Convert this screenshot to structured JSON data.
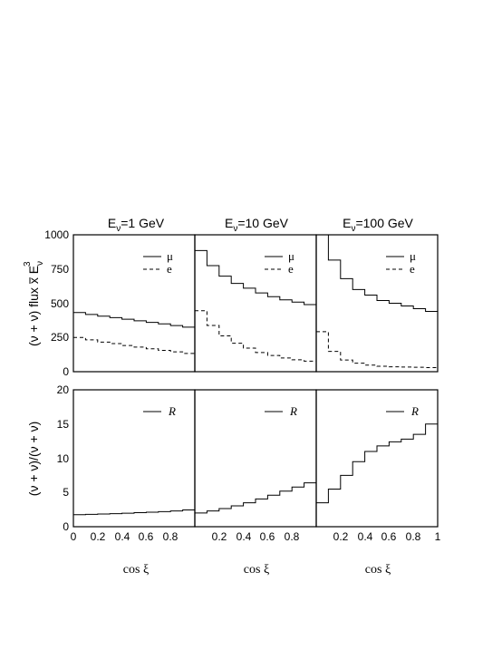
{
  "panel_titles": [
    {
      "base": "E",
      "sub": "ν",
      "rest": "=1 GeV"
    },
    {
      "base": "E",
      "sub": "ν",
      "rest": "=10 GeV"
    },
    {
      "base": "E",
      "sub": "ν",
      "rest": "=100 GeV"
    }
  ],
  "xlabel": "cos ξ",
  "ylabel_top": "(ν + ν) flux x E",
  "ylabel_top_sup": "3",
  "ylabel_top_sub": "ν",
  "ylabel_bottom": "(ν + ν)/(ν + ν)",
  "legend_top": [
    "μ",
    "e"
  ],
  "legend_bottom": [
    "R"
  ],
  "x_ticks": [
    "0",
    "0.2",
    "0.4",
    "0.6",
    "0.8",
    "1"
  ],
  "x_ticks_cont": [
    "0.2",
    "0.4",
    "0.6",
    "0.8",
    "1"
  ],
  "y_ticks_top": [
    "0",
    "250",
    "500",
    "750",
    "1000"
  ],
  "y_ticks_bottom": [
    "0",
    "5",
    "10",
    "15",
    "20"
  ],
  "chart_data": [
    {
      "type": "line",
      "title": "Eν=1 GeV",
      "xlim": [
        0,
        1
      ],
      "ylim": [
        0,
        1000
      ],
      "grid": false,
      "legend": "top-right",
      "x": [
        0,
        0.1,
        0.2,
        0.3,
        0.4,
        0.5,
        0.6,
        0.7,
        0.8,
        0.9,
        1.0
      ],
      "series": [
        {
          "name": "μ",
          "style": "solid",
          "values": [
            432,
            418,
            406,
            395,
            383,
            372,
            360,
            349,
            337,
            325,
            322
          ]
        },
        {
          "name": "e",
          "style": "dashed",
          "values": [
            250,
            233,
            216,
            205,
            191,
            180,
            167,
            156,
            145,
            133,
            128
          ]
        }
      ]
    },
    {
      "type": "line",
      "title": "Eν=10 GeV",
      "xlim": [
        0,
        1
      ],
      "ylim": [
        0,
        1000
      ],
      "grid": false,
      "legend": "top-right",
      "x": [
        0,
        0.1,
        0.2,
        0.3,
        0.4,
        0.5,
        0.6,
        0.7,
        0.8,
        0.9,
        1.0
      ],
      "series": [
        {
          "name": "μ",
          "style": "solid",
          "values": [
            885,
            775,
            698,
            645,
            610,
            575,
            548,
            525,
            508,
            490,
            488
          ]
        },
        {
          "name": "e",
          "style": "dashed",
          "values": [
            445,
            338,
            262,
            208,
            172,
            140,
            118,
            100,
            87,
            77,
            72
          ]
        }
      ]
    },
    {
      "type": "line",
      "title": "Eν=100 GeV",
      "xlim": [
        0,
        1
      ],
      "ylim": [
        0,
        1000
      ],
      "grid": false,
      "legend": "top-right",
      "x": [
        0,
        0.1,
        0.2,
        0.3,
        0.4,
        0.5,
        0.6,
        0.7,
        0.8,
        0.9,
        1.0
      ],
      "series": [
        {
          "name": "μ",
          "style": "solid",
          "values": [
            1000,
            815,
            680,
            600,
            560,
            520,
            500,
            480,
            460,
            440,
            432
          ]
        },
        {
          "name": "e",
          "style": "dashed",
          "values": [
            292,
            148,
            85,
            62,
            48,
            40,
            36,
            34,
            32,
            30,
            29
          ]
        }
      ]
    },
    {
      "type": "line",
      "xlim": [
        0,
        1
      ],
      "ylim": [
        0,
        20
      ],
      "grid": false,
      "legend": "top-right",
      "x": [
        0,
        0.1,
        0.2,
        0.3,
        0.4,
        0.5,
        0.6,
        0.7,
        0.8,
        0.9,
        1.0
      ],
      "series": [
        {
          "name": "R",
          "style": "solid",
          "values": [
            1.75,
            1.8,
            1.85,
            1.9,
            1.97,
            2.05,
            2.12,
            2.2,
            2.3,
            2.45,
            2.5
          ]
        }
      ]
    },
    {
      "type": "line",
      "xlim": [
        0,
        1
      ],
      "ylim": [
        0,
        20
      ],
      "grid": false,
      "legend": "top-right",
      "x": [
        0,
        0.1,
        0.2,
        0.3,
        0.4,
        0.5,
        0.6,
        0.7,
        0.8,
        0.9,
        1.0
      ],
      "series": [
        {
          "name": "R",
          "style": "solid",
          "values": [
            2.0,
            2.3,
            2.65,
            3.05,
            3.5,
            4.05,
            4.6,
            5.2,
            5.8,
            6.4,
            6.5
          ]
        }
      ]
    },
    {
      "type": "line",
      "xlim": [
        0,
        1
      ],
      "ylim": [
        0,
        20
      ],
      "grid": false,
      "legend": "top-right",
      "x": [
        0,
        0.1,
        0.2,
        0.3,
        0.4,
        0.5,
        0.6,
        0.7,
        0.8,
        0.9,
        1.0
      ],
      "series": [
        {
          "name": "R",
          "style": "solid",
          "values": [
            3.5,
            5.5,
            7.5,
            9.5,
            11.0,
            11.8,
            12.4,
            12.8,
            13.5,
            15.0,
            15.0
          ]
        }
      ]
    }
  ]
}
